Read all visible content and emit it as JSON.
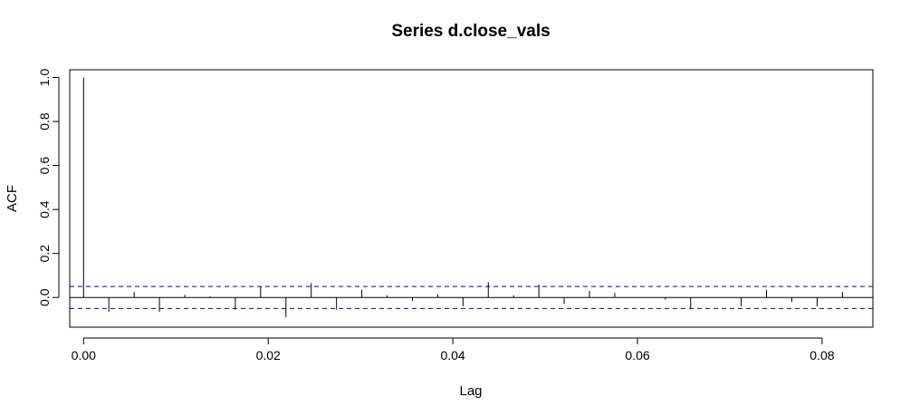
{
  "chart_data": {
    "type": "bar",
    "title": "Series  d.close_vals",
    "xlabel": "Lag",
    "ylabel": "ACF",
    "xlim": [
      -0.0015,
      0.0855
    ],
    "ylim": [
      -0.135,
      1.035
    ],
    "x_ticks": [
      0.0,
      0.02,
      0.04,
      0.06,
      0.08
    ],
    "x_tick_labels": [
      "0.00",
      "0.02",
      "0.04",
      "0.06",
      "0.08"
    ],
    "y_ticks": [
      0.0,
      0.2,
      0.4,
      0.6,
      0.8,
      1.0
    ],
    "y_tick_labels": [
      "0.0",
      "0.2",
      "0.4",
      "0.6",
      "0.8",
      "1.0"
    ],
    "confidence_bound": 0.05,
    "lags": [
      0.0,
      0.00274,
      0.00548,
      0.00822,
      0.01096,
      0.0137,
      0.01644,
      0.01918,
      0.02192,
      0.02466,
      0.0274,
      0.03014,
      0.03288,
      0.03562,
      0.03836,
      0.0411,
      0.04384,
      0.04658,
      0.04932,
      0.05206,
      0.0548,
      0.05754,
      0.06028,
      0.06302,
      0.06576,
      0.0685,
      0.07124,
      0.07398,
      0.07672,
      0.07946,
      0.0822
    ],
    "acf": [
      1.0,
      -0.065,
      0.025,
      -0.065,
      0.012,
      0.005,
      -0.055,
      0.05,
      -0.09,
      0.065,
      -0.055,
      0.035,
      0.01,
      -0.015,
      0.015,
      -0.04,
      0.07,
      0.01,
      0.06,
      -0.03,
      0.03,
      0.02,
      0.0,
      -0.01,
      -0.05,
      0.0,
      -0.04,
      0.035,
      -0.02,
      -0.04,
      0.025
    ]
  }
}
